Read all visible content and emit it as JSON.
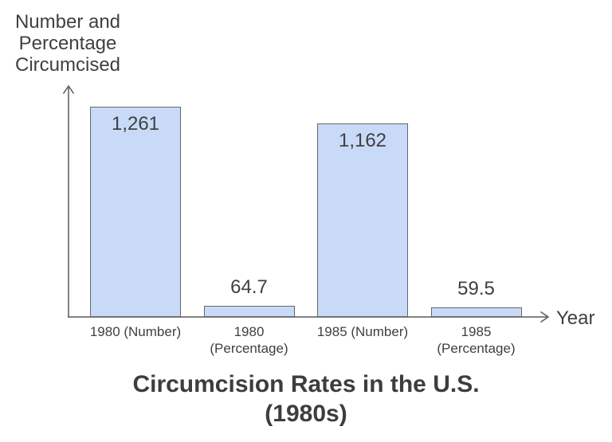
{
  "chart_data": {
    "type": "bar",
    "title": "Circumcision Rates in the U.S.\n(1980s)",
    "xlabel": "Year",
    "ylabel": "Number and\nPercentage\nCircumcised",
    "categories": [
      "1980 (Number)",
      "1980 (Percentage)",
      "1985 (Number)",
      "1985 (Percentage)"
    ],
    "tick_labels": [
      "1980 (Number)",
      "1980\n(Percentage)",
      "1985 (Number)",
      "1985\n(Percentage)"
    ],
    "values": [
      1261,
      64.7,
      1162,
      59.5
    ],
    "value_labels": [
      "1,261",
      "64.7",
      "1,162",
      "59.5"
    ],
    "ylim": [
      0,
      1385
    ],
    "grid": false,
    "legend": false,
    "axis_arrows": true,
    "colors": {
      "bar_fill": "#c9daf8",
      "bar_border": "#666666",
      "axis": "#595959",
      "text": "#404040",
      "title_text": "#3d3d3d",
      "background": "#ffffff"
    }
  }
}
